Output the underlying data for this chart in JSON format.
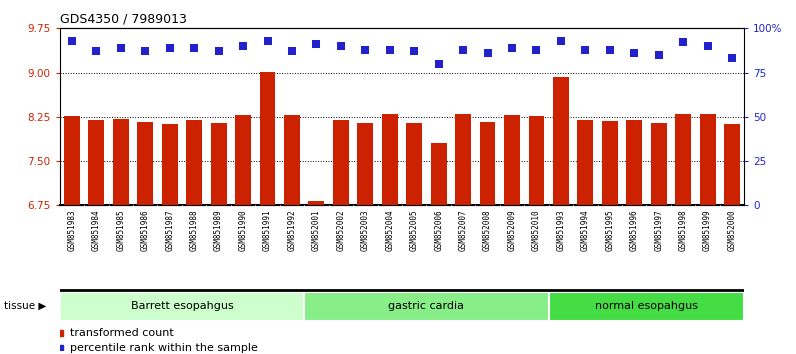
{
  "title": "GDS4350 / 7989013",
  "samples": [
    "GSM851983",
    "GSM851984",
    "GSM851985",
    "GSM851986",
    "GSM851987",
    "GSM851988",
    "GSM851989",
    "GSM851990",
    "GSM851991",
    "GSM851992",
    "GSM852001",
    "GSM852002",
    "GSM852003",
    "GSM852004",
    "GSM852005",
    "GSM852006",
    "GSM852007",
    "GSM852008",
    "GSM852009",
    "GSM852010",
    "GSM851993",
    "GSM851994",
    "GSM851995",
    "GSM851996",
    "GSM851997",
    "GSM851998",
    "GSM851999",
    "GSM852000"
  ],
  "bar_values": [
    8.27,
    8.19,
    8.21,
    8.16,
    8.12,
    8.19,
    8.14,
    8.28,
    9.01,
    8.28,
    6.82,
    8.19,
    8.15,
    8.29,
    8.15,
    7.8,
    8.29,
    8.16,
    8.28,
    8.27,
    8.93,
    8.2,
    8.18,
    8.2,
    8.15,
    8.29,
    8.3,
    8.13
  ],
  "percentile_values": [
    93,
    87,
    89,
    87,
    89,
    89,
    87,
    90,
    93,
    87,
    91,
    90,
    88,
    88,
    87,
    80,
    88,
    86,
    89,
    88,
    93,
    88,
    88,
    86,
    85,
    92,
    90,
    83
  ],
  "groups": [
    {
      "label": "Barrett esopahgus",
      "start": 0,
      "end": 9,
      "color": "#ccffcc"
    },
    {
      "label": "gastric cardia",
      "start": 10,
      "end": 19,
      "color": "#88ee88"
    },
    {
      "label": "normal esopahgus",
      "start": 20,
      "end": 27,
      "color": "#44dd44"
    }
  ],
  "bar_color": "#cc2200",
  "dot_color": "#2222cc",
  "ylim_left": [
    6.75,
    9.75
  ],
  "ylim_right": [
    0,
    100
  ],
  "yticks_left": [
    6.75,
    7.5,
    8.25,
    9.0,
    9.75
  ],
  "yticks_right": [
    0,
    25,
    50,
    75,
    100
  ],
  "ytick_right_labels": [
    "0",
    "25",
    "50",
    "75",
    "100%"
  ],
  "hlines": [
    7.5,
    8.25,
    9.0
  ],
  "chart_bg": "#ffffff",
  "xticklabel_bg": "#d8d8d8",
  "title_fontsize": 9,
  "bar_width": 0.65,
  "dot_size": 30
}
